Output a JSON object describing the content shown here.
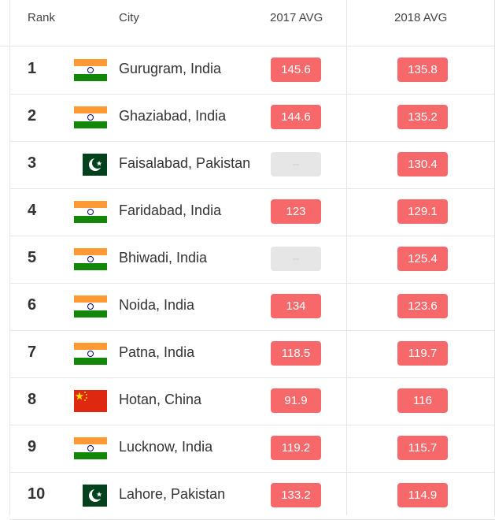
{
  "header": {
    "rank": "Rank",
    "city": "City",
    "avg2017": "2017 AVG",
    "avg2018": "2018 AVG"
  },
  "colors": {
    "high": "#f7686b",
    "none": "#e6e6e6"
  },
  "rows": [
    {
      "rank": "1",
      "flag": "india",
      "city": "Gurugram, India",
      "avg2017": "145.6",
      "avg2018": "135.8"
    },
    {
      "rank": "2",
      "flag": "india",
      "city": "Ghaziabad, India",
      "avg2017": "144.6",
      "avg2018": "135.2"
    },
    {
      "rank": "3",
      "flag": "pakistan",
      "city": "Faisalabad, Pakistan",
      "avg2017": "–",
      "avg2018": "130.4"
    },
    {
      "rank": "4",
      "flag": "india",
      "city": "Faridabad, India",
      "avg2017": "123",
      "avg2018": "129.1"
    },
    {
      "rank": "5",
      "flag": "india",
      "city": "Bhiwadi, India",
      "avg2017": "–",
      "avg2018": "125.4"
    },
    {
      "rank": "6",
      "flag": "india",
      "city": "Noida, India",
      "avg2017": "134",
      "avg2018": "123.6"
    },
    {
      "rank": "7",
      "flag": "india",
      "city": "Patna, India",
      "avg2017": "118.5",
      "avg2018": "119.7"
    },
    {
      "rank": "8",
      "flag": "china",
      "city": "Hotan, China",
      "avg2017": "91.9",
      "avg2018": "116"
    },
    {
      "rank": "9",
      "flag": "india",
      "city": "Lucknow, India",
      "avg2017": "119.2",
      "avg2018": "115.7"
    },
    {
      "rank": "10",
      "flag": "pakistan",
      "city": "Lahore, Pakistan",
      "avg2017": "133.2",
      "avg2018": "114.9"
    }
  ]
}
